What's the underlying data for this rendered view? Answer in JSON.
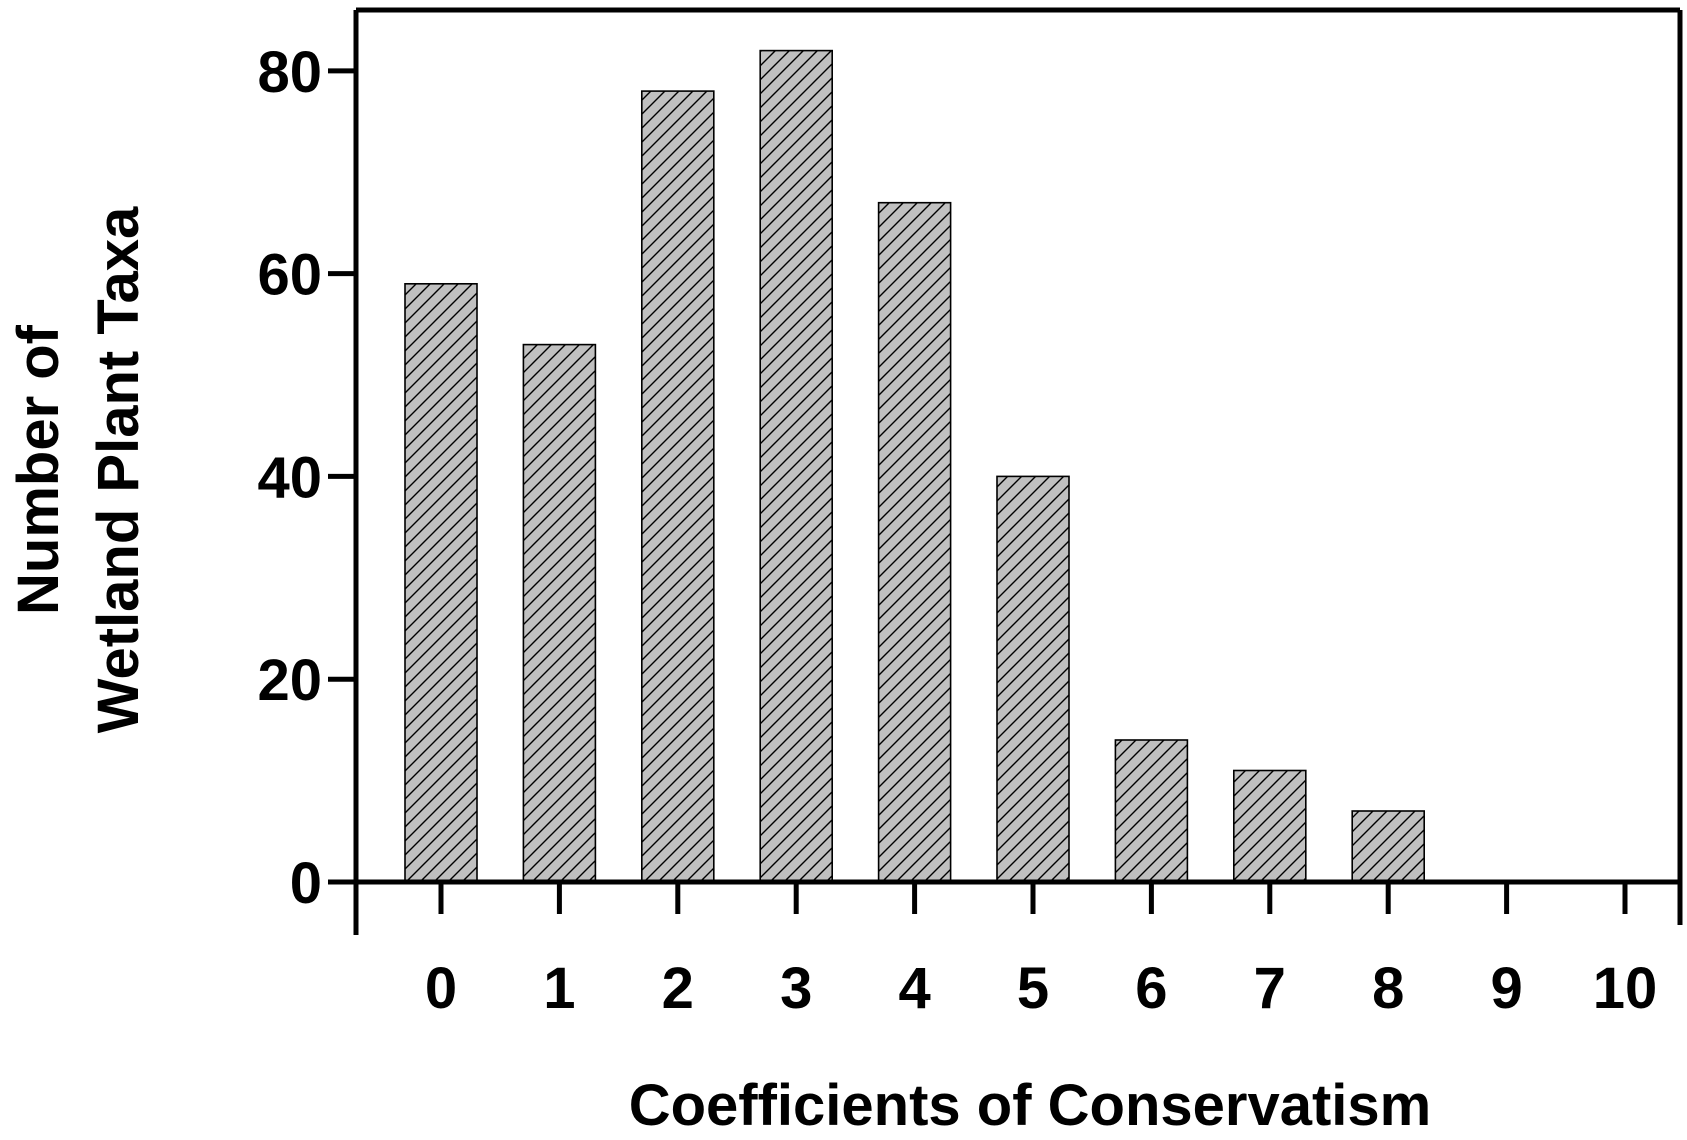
{
  "chart_data": {
    "type": "bar",
    "categories": [
      "0",
      "1",
      "2",
      "3",
      "4",
      "5",
      "6",
      "7",
      "8",
      "9",
      "10"
    ],
    "values": [
      59,
      53,
      78,
      82,
      67,
      40,
      14,
      11,
      7,
      0,
      0
    ],
    "xlabel": "Coefficients of Conservatism",
    "ylabel_lines": [
      "Number of",
      "Wetland Plant Taxa"
    ],
    "ylim": [
      0,
      86
    ],
    "yticks": [
      0,
      20,
      40,
      60,
      80
    ],
    "ytick_labels": [
      "0",
      "20",
      "40",
      "60",
      "80"
    ],
    "grid": false,
    "legend": "none",
    "bar_fill": "#c0c0c0",
    "bar_hatch": "diagonal"
  }
}
